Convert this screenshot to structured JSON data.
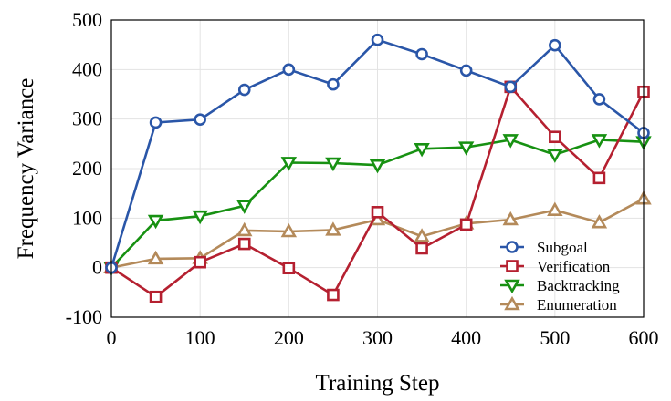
{
  "chart_data": {
    "type": "line",
    "title": "",
    "xlabel": "Training Step",
    "ylabel": "Frequency Variance",
    "x": [
      0,
      50,
      100,
      150,
      200,
      250,
      300,
      350,
      400,
      450,
      500,
      550,
      600
    ],
    "xlim": [
      0,
      600
    ],
    "ylim": [
      -100,
      500
    ],
    "xticks": [
      "0",
      "100",
      "200",
      "300",
      "400",
      "500",
      "600"
    ],
    "yticks": [
      "-100",
      "0",
      "100",
      "200",
      "300",
      "400",
      "500"
    ],
    "grid": true,
    "legend_position": "bottom-right",
    "series": [
      {
        "name": "Subgoal",
        "color": "#2a56a8",
        "marker": "circle",
        "values": [
          0,
          293,
          299,
          359,
          400,
          370,
          460,
          431,
          398,
          365,
          449,
          340,
          272
        ]
      },
      {
        "name": "Verification",
        "color": "#b52030",
        "marker": "square",
        "values": [
          0,
          -59,
          11,
          48,
          -1,
          -55,
          112,
          39,
          87,
          365,
          264,
          181,
          355
        ]
      },
      {
        "name": "Backtracking",
        "color": "#179112",
        "marker": "triangle-down",
        "values": [
          0,
          95,
          104,
          125,
          212,
          211,
          207,
          240,
          243,
          258,
          228,
          258,
          254
        ]
      },
      {
        "name": "Enumeration",
        "color": "#b48a5a",
        "marker": "triangle-up",
        "values": [
          0,
          18,
          19,
          75,
          73,
          76,
          97,
          63,
          89,
          97,
          116,
          91,
          139
        ]
      }
    ]
  }
}
